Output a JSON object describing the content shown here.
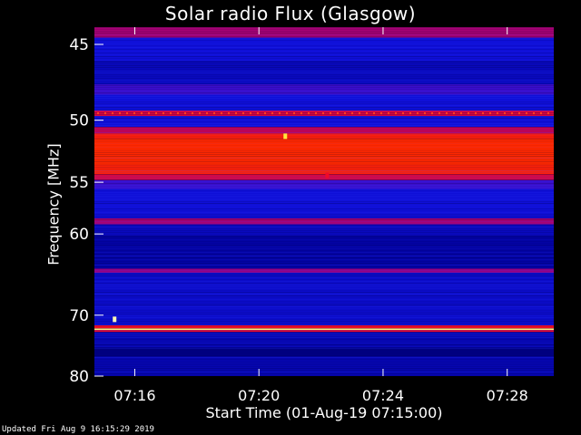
{
  "footer": "Updated Fri Aug  9 16:15:29 2019",
  "colors": {
    "background": "#000000",
    "text": "#ffffff",
    "low": "#0000c8",
    "mid": "#c80078",
    "high": "#ff2000",
    "peak": "#ffff80"
  },
  "chart_data": {
    "type": "heatmap",
    "title": "Solar radio Flux (Glasgow)",
    "xlabel": "Start Time (01-Aug-19 07:15:00)",
    "ylabel": "Frequency [MHz]",
    "x_ticks": [
      "07:16",
      "07:20",
      "07:24",
      "07:28"
    ],
    "x_tick_minutes": [
      1,
      5,
      9,
      13
    ],
    "x_range_minutes": [
      -0.3,
      14.5
    ],
    "y_ticks": [
      45,
      50,
      55,
      60,
      70,
      80
    ],
    "y_range": [
      44,
      80
    ],
    "y_scale": "reciprocal",
    "colormap": [
      "black",
      "blue",
      "purple",
      "red",
      "yellow",
      "white"
    ],
    "frequency_bands": [
      {
        "from": 44.0,
        "to": 44.6,
        "level": 0.45
      },
      {
        "from": 44.6,
        "to": 46.0,
        "level": 0.22
      },
      {
        "from": 46.0,
        "to": 47.5,
        "level": 0.18
      },
      {
        "from": 47.5,
        "to": 48.2,
        "level": 0.3
      },
      {
        "from": 48.2,
        "to": 49.3,
        "level": 0.22
      },
      {
        "from": 49.3,
        "to": 49.7,
        "level": 0.55
      },
      {
        "from": 49.7,
        "to": 50.5,
        "level": 0.22
      },
      {
        "from": 50.5,
        "to": 51.0,
        "level": 0.5
      },
      {
        "from": 51.0,
        "to": 51.4,
        "level": 0.72
      },
      {
        "from": 51.4,
        "to": 53.5,
        "level": 0.78
      },
      {
        "from": 53.5,
        "to": 54.3,
        "level": 0.74
      },
      {
        "from": 54.3,
        "to": 54.8,
        "level": 0.55
      },
      {
        "from": 54.8,
        "to": 55.6,
        "level": 0.3
      },
      {
        "from": 55.6,
        "to": 58.4,
        "level": 0.22
      },
      {
        "from": 58.4,
        "to": 59.0,
        "level": 0.45
      },
      {
        "from": 59.0,
        "to": 60.2,
        "level": 0.18
      },
      {
        "from": 60.2,
        "to": 63.9,
        "level": 0.14
      },
      {
        "from": 63.9,
        "to": 64.4,
        "level": 0.42
      },
      {
        "from": 64.4,
        "to": 65.0,
        "level": 0.2
      },
      {
        "from": 65.0,
        "to": 71.5,
        "level": 0.2
      },
      {
        "from": 71.5,
        "to": 71.95,
        "level": 0.62
      },
      {
        "from": 71.95,
        "to": 72.2,
        "level": 0.94
      },
      {
        "from": 72.2,
        "to": 72.5,
        "level": 0.6
      },
      {
        "from": 72.5,
        "to": 75.0,
        "level": 0.16
      },
      {
        "from": 75.0,
        "to": 76.5,
        "level": 0.1
      },
      {
        "from": 76.5,
        "to": 80.0,
        "level": 0.16
      }
    ],
    "spots": [
      {
        "minute": 0.35,
        "freq": 70.6,
        "level": 0.97
      },
      {
        "minute": 5.85,
        "freq": 51.2,
        "level": 0.9
      },
      {
        "minute": 7.2,
        "freq": 54.4,
        "level": 0.6
      }
    ]
  }
}
